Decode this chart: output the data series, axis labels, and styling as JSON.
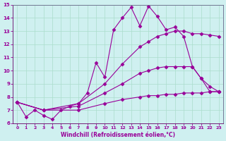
{
  "xlabel": "Windchill (Refroidissement éolien,°C)",
  "bg_color": "#cff0f0",
  "line_color": "#990099",
  "grid_color": "#aaddcc",
  "xlim": [
    -0.5,
    23.5
  ],
  "ylim": [
    6,
    15
  ],
  "xticks": [
    0,
    1,
    2,
    3,
    4,
    5,
    6,
    7,
    8,
    9,
    10,
    11,
    12,
    13,
    14,
    15,
    16,
    17,
    18,
    19,
    20,
    21,
    22,
    23
  ],
  "yticks": [
    6,
    7,
    8,
    9,
    10,
    11,
    12,
    13,
    14,
    15
  ],
  "series": [
    {
      "x": [
        0,
        1,
        2,
        3,
        4,
        5,
        6,
        7,
        8,
        9,
        10,
        11,
        12,
        13,
        14,
        15,
        16,
        17,
        18,
        19,
        20,
        21,
        22,
        23
      ],
      "y": [
        7.6,
        6.5,
        7.0,
        6.6,
        6.3,
        7.0,
        7.3,
        7.5,
        8.3,
        10.6,
        9.5,
        13.1,
        14.0,
        14.8,
        13.4,
        14.9,
        14.1,
        13.1,
        13.3,
        12.6,
        10.3,
        9.4,
        8.4,
        8.4
      ]
    },
    {
      "x": [
        0,
        3,
        7,
        10,
        12,
        14,
        15,
        16,
        17,
        18,
        19,
        20,
        21,
        22,
        23
      ],
      "y": [
        7.6,
        7.0,
        7.5,
        9.0,
        10.5,
        11.8,
        12.2,
        12.6,
        12.8,
        13.0,
        13.0,
        12.8,
        12.8,
        12.7,
        12.6
      ]
    },
    {
      "x": [
        0,
        3,
        7,
        10,
        12,
        14,
        15,
        16,
        17,
        18,
        19,
        20,
        21,
        22,
        23
      ],
      "y": [
        7.6,
        7.0,
        7.3,
        8.3,
        9.0,
        9.8,
        10.0,
        10.2,
        10.3,
        10.3,
        10.3,
        10.3,
        9.4,
        8.8,
        8.4
      ]
    },
    {
      "x": [
        0,
        3,
        7,
        10,
        12,
        14,
        15,
        16,
        17,
        18,
        19,
        20,
        21,
        22,
        23
      ],
      "y": [
        7.6,
        7.0,
        7.0,
        7.5,
        7.8,
        8.0,
        8.1,
        8.1,
        8.2,
        8.2,
        8.3,
        8.3,
        8.3,
        8.4,
        8.4
      ]
    }
  ]
}
